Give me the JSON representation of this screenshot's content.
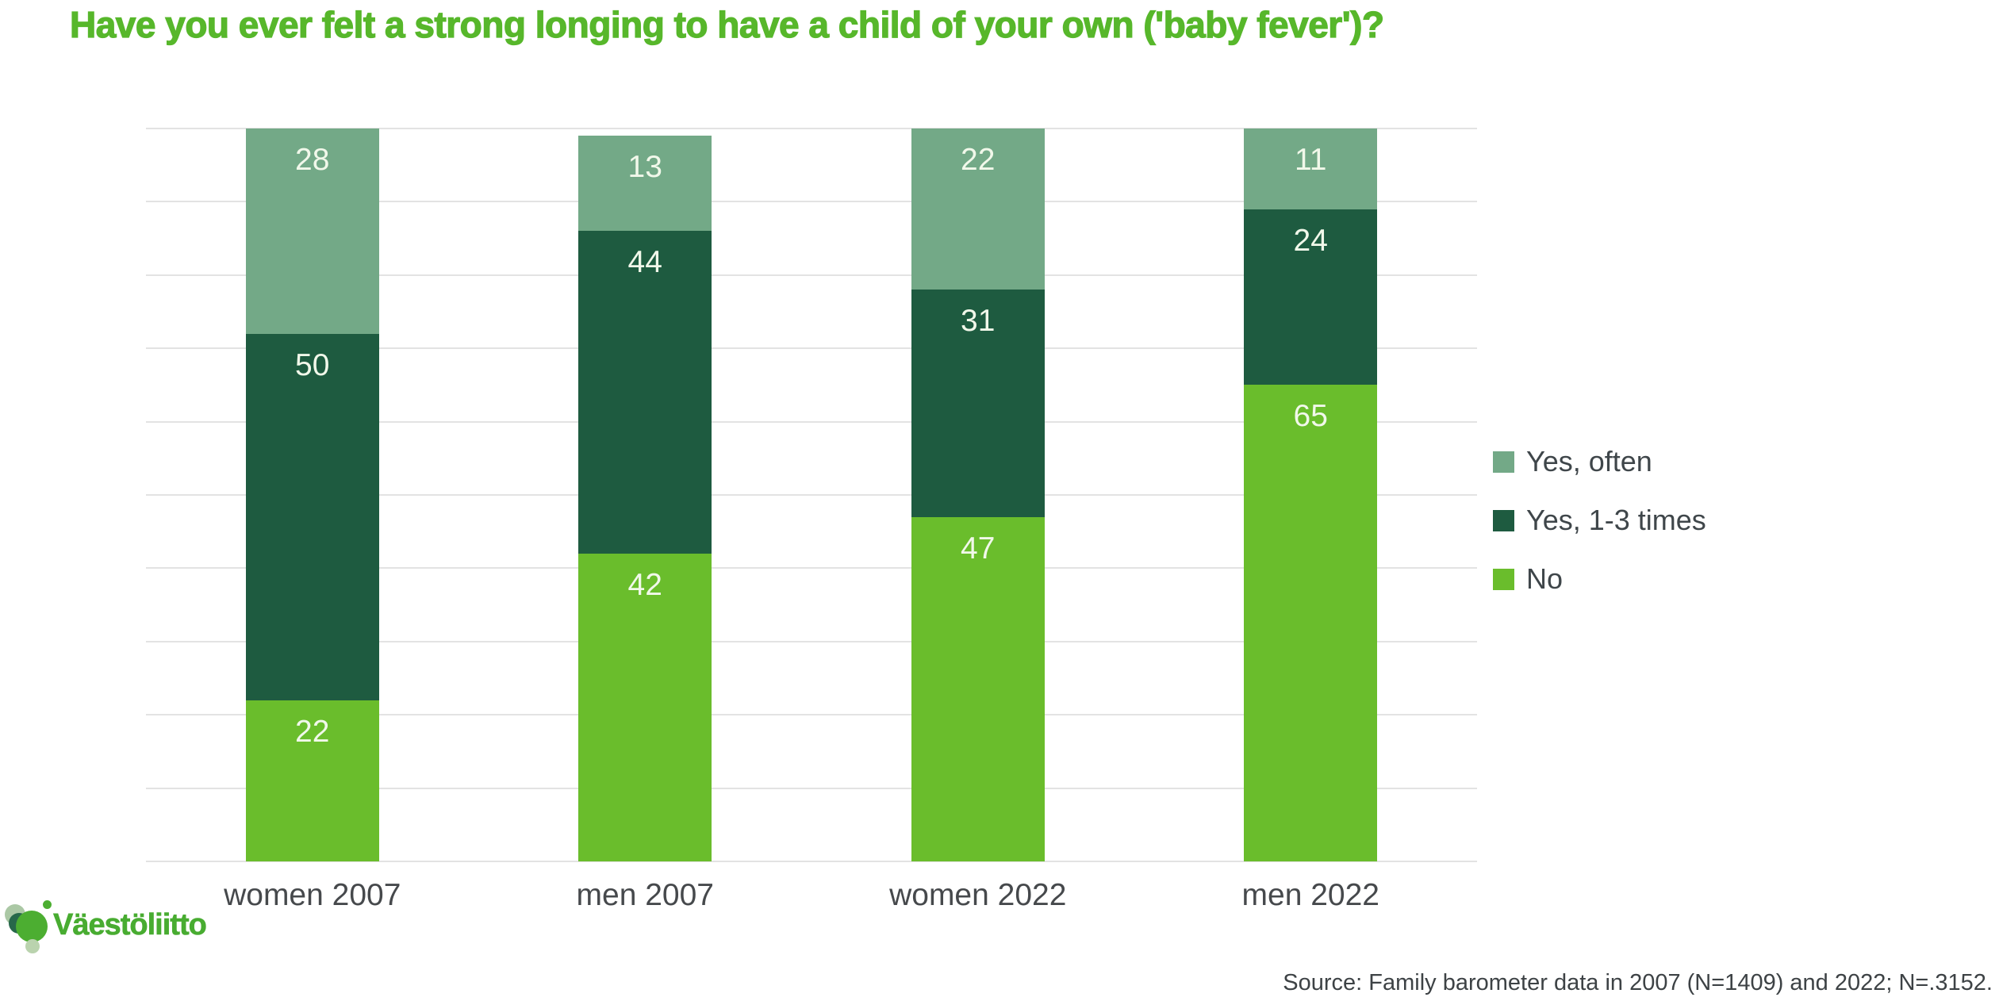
{
  "chart_data": {
    "type": "bar",
    "stacked": true,
    "title": "Have you ever felt a strong longing to have a child of your own ('baby fever')?",
    "categories": [
      "women 2007",
      "men 2007",
      "women 2022",
      "men 2022"
    ],
    "series": [
      {
        "name": "Yes, often",
        "color": "#73a987",
        "values": [
          28,
          13,
          22,
          11
        ]
      },
      {
        "name": "Yes, 1-3 times",
        "color": "#1e5b40",
        "values": [
          50,
          44,
          31,
          24
        ]
      },
      {
        "name": "No",
        "color": "#6abd2c",
        "values": [
          22,
          42,
          47,
          65
        ]
      }
    ],
    "xlabel": "",
    "ylabel": "",
    "ylim": [
      0,
      100
    ],
    "gridline_step": 10,
    "grid": "horizontal only, light gray, no y tick labels",
    "legend_position": "right",
    "value_labels": "inside top of each segment, white text"
  },
  "colors": {
    "title_green": "#57b72b",
    "gridline": "#e3e3e3",
    "axis_label_text": "#46494c",
    "legend_text": "#3f464a",
    "segment_value_text": "#f1f8ea",
    "logo_green": "#48ac31",
    "source_text": "#3d4245"
  },
  "logo": {
    "text": "Väestöliitto"
  },
  "footer": {
    "source": "Source: Family barometer data in 2007 (N=1409) and 2022; N=.3152."
  }
}
